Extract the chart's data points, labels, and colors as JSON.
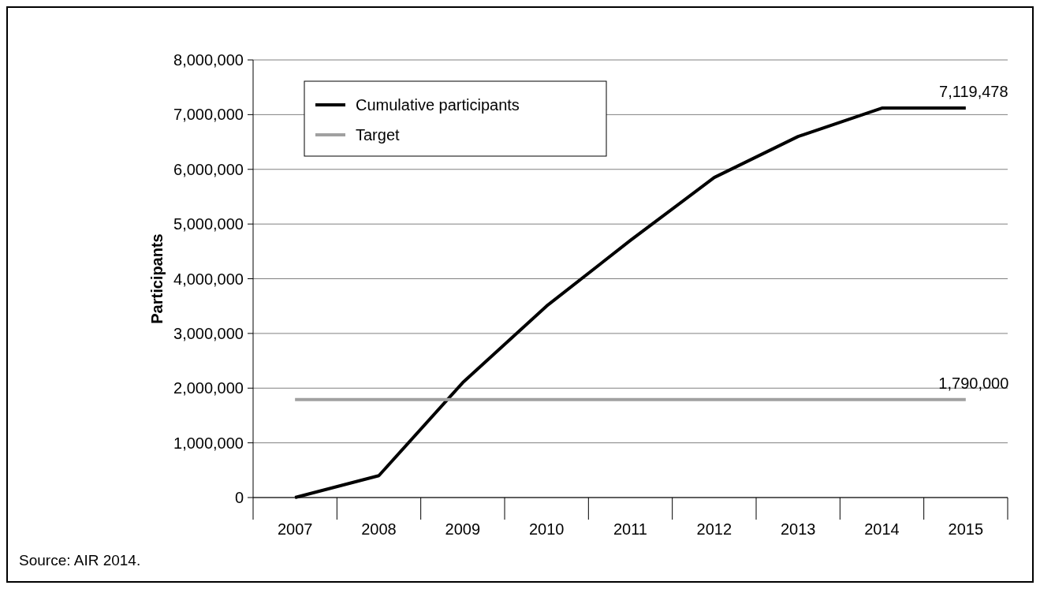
{
  "chart_data": {
    "type": "line",
    "ylabel": "Participants",
    "categories": [
      "2007",
      "2008",
      "2009",
      "2010",
      "2011",
      "2012",
      "2013",
      "2014",
      "2015"
    ],
    "series": [
      {
        "name": "Cumulative participants",
        "color": "#000000",
        "values": [
          0,
          400000,
          2100000,
          3500000,
          4700000,
          5850000,
          6600000,
          7119478,
          7119478
        ]
      },
      {
        "name": "Target",
        "color": "#a0a0a0",
        "values": [
          1790000,
          1790000,
          1790000,
          1790000,
          1790000,
          1790000,
          1790000,
          1790000,
          1790000
        ]
      }
    ],
    "ylim": [
      0,
      8000000
    ],
    "yticks": [
      {
        "value": 0,
        "label": "0"
      },
      {
        "value": 1000000,
        "label": "1,000,000"
      },
      {
        "value": 2000000,
        "label": "2,000,000"
      },
      {
        "value": 3000000,
        "label": "3,000,000"
      },
      {
        "value": 4000000,
        "label": "4,000,000"
      },
      {
        "value": 5000000,
        "label": "5,000,000"
      },
      {
        "value": 6000000,
        "label": "6,000,000"
      },
      {
        "value": 7000000,
        "label": "7,000,000"
      },
      {
        "value": 8000000,
        "label": "8,000,000"
      }
    ],
    "grid": "y",
    "legend": "top left",
    "marker": "none",
    "line_style": "solid",
    "annotations": [
      {
        "text": "7,119,478",
        "x": "2015",
        "y": 7119478
      },
      {
        "text": "1,790,000",
        "x": "2015",
        "y": 1790000
      },
      "Source: AIR 2014."
    ]
  }
}
